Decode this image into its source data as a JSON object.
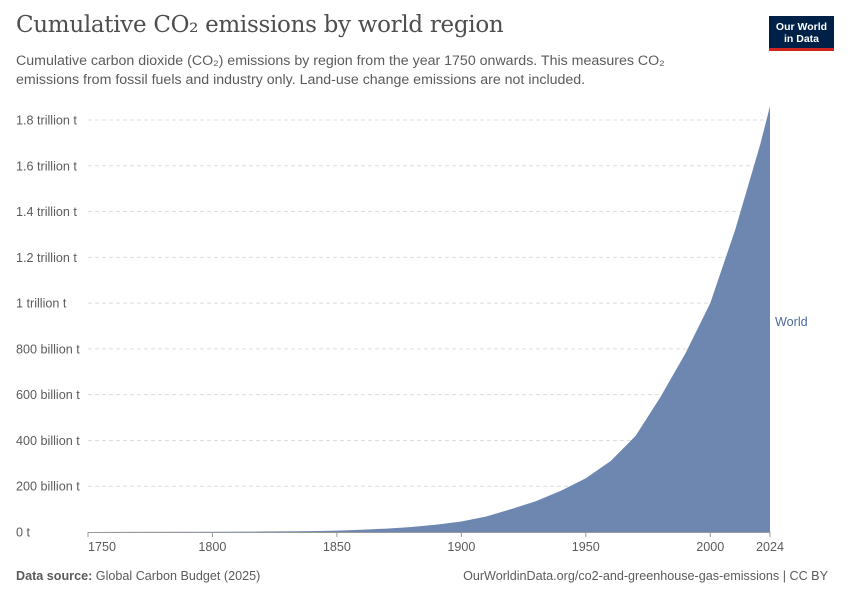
{
  "header": {
    "title": "Cumulative CO₂ emissions by world region",
    "subtitle": "Cumulative carbon dioxide (CO₂) emissions by region from the year 1750 onwards. This measures CO₂ emissions from fossil fuels and industry only. Land-use change emissions are not included."
  },
  "logo": {
    "line1": "Our World",
    "line2": "in Data",
    "background": "#002147",
    "accent": "#ce261e"
  },
  "footer": {
    "source_label": "Data source:",
    "source_value": "Global Carbon Budget (2025)",
    "url": "OurWorldinData.org/co2-and-greenhouse-gas-emissions | CC BY"
  },
  "chart_data": {
    "type": "area",
    "title": "Cumulative CO₂ emissions by world region",
    "xlabel": "",
    "ylabel": "",
    "unit": "tonnes",
    "xlim": [
      1750,
      2024
    ],
    "ylim": [
      0,
      1800000000000
    ],
    "grid": true,
    "legend": "right",
    "x_ticks": [
      1750,
      1800,
      1850,
      1900,
      1950,
      2000,
      2024
    ],
    "y_ticks": [
      {
        "value": 0,
        "label": "0 t"
      },
      {
        "value": 200000000000,
        "label": "200 billion t"
      },
      {
        "value": 400000000000,
        "label": "400 billion t"
      },
      {
        "value": 600000000000,
        "label": "600 billion t"
      },
      {
        "value": 800000000000,
        "label": "800 billion t"
      },
      {
        "value": 1000000000000,
        "label": "1 trillion t"
      },
      {
        "value": 1200000000000,
        "label": "1.2 trillion t"
      },
      {
        "value": 1400000000000,
        "label": "1.4 trillion t"
      },
      {
        "value": 1600000000000,
        "label": "1.6 trillion t"
      },
      {
        "value": 1800000000000,
        "label": "1.8 trillion t"
      }
    ],
    "series": [
      {
        "name": "World",
        "color": "#6d87b0",
        "label_color": "#4c6a9c",
        "x": [
          1750,
          1800,
          1820,
          1840,
          1850,
          1860,
          1870,
          1880,
          1890,
          1900,
          1910,
          1920,
          1930,
          1940,
          1950,
          1960,
          1970,
          1980,
          1990,
          2000,
          2010,
          2020,
          2024
        ],
        "values": [
          0,
          1000000000,
          2000000000,
          4000000000,
          6000000000,
          10000000000,
          15000000000,
          22000000000,
          32000000000,
          46000000000,
          68000000000,
          100000000000,
          135000000000,
          180000000000,
          235000000000,
          310000000000,
          420000000000,
          590000000000,
          780000000000,
          1000000000000,
          1320000000000,
          1690000000000,
          1860000000000
        ]
      }
    ]
  }
}
